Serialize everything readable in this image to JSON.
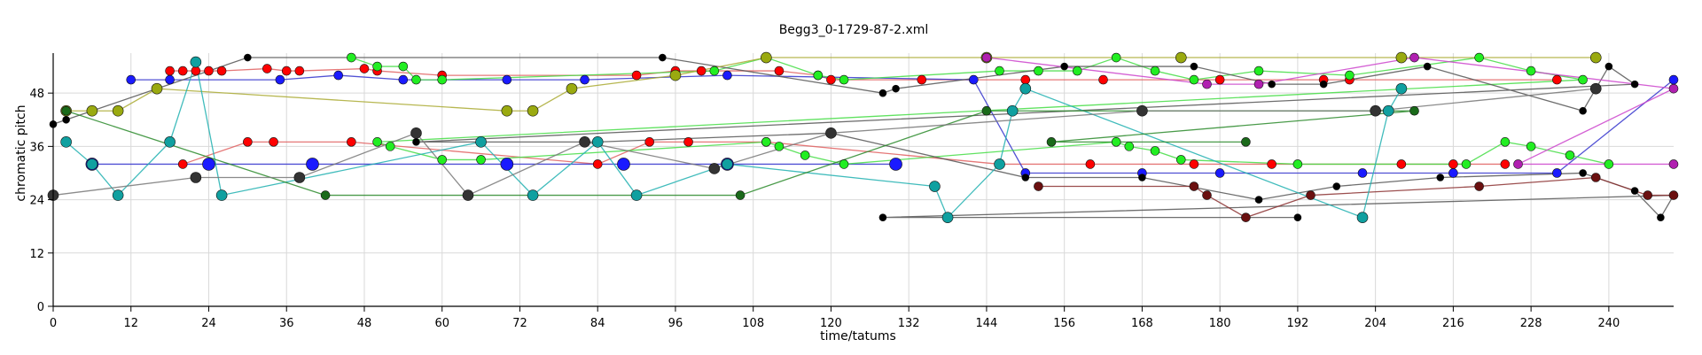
{
  "chart_data": {
    "type": "scatter",
    "title": "Begg3_0-1729-87-2.xml",
    "xlabel": "time/tatums",
    "ylabel": "chromatic pitch",
    "xlim": [
      0,
      250
    ],
    "ylim": [
      0,
      57
    ],
    "xticks": [
      0,
      12,
      24,
      36,
      48,
      60,
      72,
      84,
      96,
      108,
      120,
      132,
      144,
      156,
      168,
      180,
      192,
      204,
      216,
      228,
      240
    ],
    "yticks": [
      0,
      12,
      24,
      36,
      48
    ],
    "grid": true,
    "series": [
      {
        "color": "#ff0000",
        "line": "#e06060",
        "size": 5,
        "points": [
          [
            18,
            53
          ],
          [
            20,
            53
          ],
          [
            22,
            53
          ],
          [
            24,
            53
          ],
          [
            26,
            53
          ],
          [
            33,
            53.5
          ],
          [
            36,
            53
          ],
          [
            38,
            53
          ],
          [
            48,
            53.5
          ],
          [
            50,
            53
          ],
          [
            60,
            52
          ],
          [
            90,
            52
          ],
          [
            96,
            53
          ],
          [
            100,
            53
          ],
          [
            112,
            53
          ],
          [
            118,
            52
          ],
          [
            120,
            51
          ],
          [
            134,
            51
          ],
          [
            150,
            51
          ],
          [
            162,
            51
          ],
          [
            180,
            51
          ],
          [
            196,
            51
          ],
          [
            200,
            51
          ],
          [
            232,
            51
          ]
        ]
      },
      {
        "color": "#ff0000",
        "line": "#e06060",
        "size": 5,
        "points": [
          [
            20,
            32
          ],
          [
            30,
            37
          ],
          [
            34,
            37
          ],
          [
            46,
            37
          ],
          [
            84,
            32
          ],
          [
            92,
            37
          ],
          [
            98,
            37
          ],
          [
            110,
            37
          ],
          [
            146,
            32
          ],
          [
            160,
            32
          ],
          [
            176,
            32
          ],
          [
            188,
            32
          ],
          [
            208,
            32
          ],
          [
            216,
            32
          ],
          [
            224,
            32
          ]
        ]
      },
      {
        "color": "#1a1aff",
        "line": "#3333cc",
        "size": 5,
        "points": [
          [
            12,
            51
          ],
          [
            18,
            51
          ],
          [
            35,
            51
          ],
          [
            44,
            52
          ],
          [
            54,
            51
          ],
          [
            70,
            51
          ],
          [
            82,
            51
          ],
          [
            104,
            52
          ],
          [
            142,
            51
          ],
          [
            150,
            30
          ],
          [
            168,
            30
          ],
          [
            180,
            30
          ],
          [
            202,
            30
          ],
          [
            216,
            30
          ],
          [
            232,
            30
          ],
          [
            250,
            51
          ]
        ]
      },
      {
        "color": "#1a1aff",
        "line": "#3333cc",
        "size": 7,
        "points": [
          [
            6,
            32
          ],
          [
            24,
            32
          ],
          [
            40,
            32
          ],
          [
            70,
            32
          ],
          [
            88,
            32
          ],
          [
            104,
            32
          ],
          [
            130,
            32
          ]
        ]
      },
      {
        "color": "#22ee22",
        "line": "#44dd44",
        "size": 5,
        "points": [
          [
            46,
            56
          ],
          [
            50,
            54
          ],
          [
            54,
            54
          ],
          [
            56,
            51
          ],
          [
            60,
            51
          ],
          [
            102,
            53
          ],
          [
            110,
            56
          ],
          [
            118,
            52
          ],
          [
            122,
            51
          ],
          [
            146,
            53
          ],
          [
            152,
            53
          ],
          [
            158,
            53
          ],
          [
            164,
            56
          ],
          [
            170,
            53
          ],
          [
            176,
            51
          ],
          [
            186,
            53
          ],
          [
            200,
            52
          ],
          [
            220,
            56
          ],
          [
            228,
            53
          ],
          [
            236,
            51
          ],
          [
            50,
            37
          ],
          [
            52,
            36
          ],
          [
            60,
            33
          ],
          [
            66,
            33
          ],
          [
            110,
            37
          ],
          [
            112,
            36
          ],
          [
            116,
            34
          ],
          [
            122,
            32
          ],
          [
            164,
            37
          ],
          [
            166,
            36
          ],
          [
            170,
            35
          ],
          [
            174,
            33
          ],
          [
            192,
            32
          ],
          [
            218,
            32
          ],
          [
            224,
            37
          ],
          [
            228,
            36
          ],
          [
            234,
            34
          ],
          [
            240,
            32
          ]
        ]
      },
      {
        "color": "#000000",
        "line": "#555555",
        "size": 4,
        "points": [
          [
            0,
            41
          ],
          [
            2,
            42
          ],
          [
            30,
            56
          ],
          [
            94,
            56
          ],
          [
            128,
            48
          ],
          [
            130,
            49
          ],
          [
            156,
            54
          ],
          [
            176,
            54
          ],
          [
            188,
            50
          ],
          [
            196,
            50
          ],
          [
            212,
            54
          ],
          [
            236,
            44
          ],
          [
            240,
            54
          ],
          [
            244,
            50
          ],
          [
            56,
            37
          ],
          [
            84,
            37
          ],
          [
            120,
            39
          ],
          [
            150,
            29
          ],
          [
            168,
            29
          ],
          [
            186,
            24
          ],
          [
            198,
            27
          ],
          [
            214,
            29
          ],
          [
            236,
            30
          ],
          [
            244,
            26
          ],
          [
            248,
            20
          ],
          [
            250,
            25
          ],
          [
            128,
            20
          ],
          [
            192,
            20
          ]
        ]
      },
      {
        "color": "#6b1010",
        "line": "#8b3030",
        "size": 5,
        "points": [
          [
            152,
            27
          ],
          [
            176,
            27
          ],
          [
            178,
            25
          ],
          [
            184,
            20
          ],
          [
            194,
            25
          ],
          [
            220,
            27
          ],
          [
            238,
            29
          ],
          [
            246,
            25
          ],
          [
            250,
            25
          ]
        ]
      },
      {
        "color": "#9aaa10",
        "line": "#aaaa33",
        "size": 6,
        "points": [
          [
            2,
            44
          ],
          [
            6,
            44
          ],
          [
            10,
            44
          ],
          [
            16,
            49
          ],
          [
            70,
            44
          ],
          [
            74,
            44
          ],
          [
            80,
            49
          ],
          [
            96,
            52
          ],
          [
            110,
            56
          ],
          [
            144,
            56
          ],
          [
            174,
            56
          ],
          [
            208,
            56
          ],
          [
            238,
            56
          ]
        ]
      },
      {
        "color": "#10a0a0",
        "line": "#20b0b0",
        "size": 6,
        "points": [
          [
            2,
            37
          ],
          [
            6,
            32
          ],
          [
            10,
            25
          ],
          [
            18,
            37
          ],
          [
            22,
            55
          ],
          [
            26,
            25
          ],
          [
            66,
            37
          ],
          [
            74,
            25
          ],
          [
            84,
            37
          ],
          [
            90,
            25
          ],
          [
            104,
            32
          ],
          [
            136,
            27
          ],
          [
            138,
            20
          ],
          [
            146,
            32
          ],
          [
            148,
            44
          ],
          [
            150,
            49
          ],
          [
            202,
            20
          ],
          [
            206,
            44
          ],
          [
            208,
            49
          ]
        ]
      },
      {
        "color": "#1a6a1a",
        "line": "#2a8a2a",
        "size": 5,
        "points": [
          [
            2,
            44
          ],
          [
            42,
            25
          ],
          [
            64,
            25
          ],
          [
            106,
            25
          ],
          [
            144,
            44
          ],
          [
            210,
            44
          ],
          [
            154,
            37
          ],
          [
            184,
            37
          ]
        ]
      },
      {
        "color": "#b020b0",
        "line": "#cc44cc",
        "size": 5,
        "points": [
          [
            144,
            56
          ],
          [
            178,
            50
          ],
          [
            186,
            50
          ],
          [
            210,
            56
          ],
          [
            250,
            49
          ],
          [
            226,
            32
          ],
          [
            250,
            32
          ]
        ]
      },
      {
        "color": "#333333",
        "line": "#777777",
        "size": 6,
        "points": [
          [
            0,
            25
          ],
          [
            22,
            29
          ],
          [
            38,
            29
          ],
          [
            56,
            39
          ],
          [
            64,
            25
          ],
          [
            82,
            37
          ],
          [
            102,
            31
          ],
          [
            120,
            39
          ],
          [
            168,
            44
          ],
          [
            204,
            44
          ],
          [
            238,
            49
          ]
        ]
      }
    ]
  }
}
